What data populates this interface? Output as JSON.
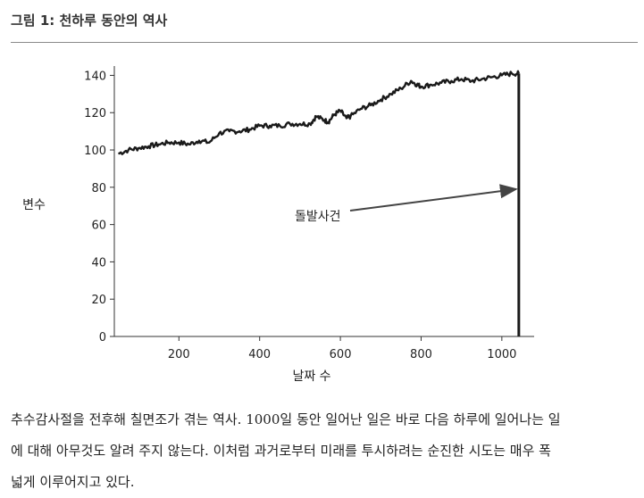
{
  "figure_title": "그림 1: 천하루 동안의 역사",
  "caption_lines": [
    "추수감사절을 전후해 칠면조가 겪는 역사. 1000일 동안 일어난 일은 바로 다음 하루에 일어나는 일",
    "에 대해 아무것도 알려 주지 않는다. 이처럼 과거로부터 미래를 투시하려는 순진한 시도는 매우 폭",
    "넓게 이루어지고 있다."
  ],
  "chart_data": {
    "type": "line",
    "xlabel": "날짜 수",
    "ylabel": "변수",
    "xlim": [
      40,
      1080
    ],
    "ylim": [
      0,
      145
    ],
    "x_ticks": [
      200,
      400,
      600,
      800,
      1000
    ],
    "y_ticks": [
      0,
      20,
      40,
      60,
      80,
      100,
      120,
      140
    ],
    "grid": false,
    "series": [
      {
        "color": "#1a1a1a",
        "points": [
          [
            50,
            98
          ],
          [
            75,
            100
          ],
          [
            100,
            101
          ],
          [
            125,
            102
          ],
          [
            150,
            103
          ],
          [
            175,
            104
          ],
          [
            200,
            104
          ],
          [
            225,
            103
          ],
          [
            250,
            105
          ],
          [
            275,
            104
          ],
          [
            300,
            109
          ],
          [
            325,
            110
          ],
          [
            350,
            110
          ],
          [
            375,
            111
          ],
          [
            400,
            113
          ],
          [
            425,
            113
          ],
          [
            450,
            113
          ],
          [
            475,
            114
          ],
          [
            500,
            114
          ],
          [
            525,
            114
          ],
          [
            540,
            118
          ],
          [
            560,
            116
          ],
          [
            570,
            115
          ],
          [
            585,
            119
          ],
          [
            600,
            121
          ],
          [
            615,
            117
          ],
          [
            625,
            118
          ],
          [
            650,
            122
          ],
          [
            675,
            124
          ],
          [
            700,
            127
          ],
          [
            725,
            130
          ],
          [
            750,
            133
          ],
          [
            775,
            137
          ],
          [
            790,
            135
          ],
          [
            800,
            134
          ],
          [
            825,
            135
          ],
          [
            850,
            136
          ],
          [
            875,
            137
          ],
          [
            900,
            138
          ],
          [
            925,
            137
          ],
          [
            950,
            138
          ],
          [
            975,
            139
          ],
          [
            1000,
            140
          ],
          [
            1025,
            141
          ],
          [
            1042,
            141
          ]
        ],
        "drop": {
          "x": 1042,
          "to_y": 0
        }
      }
    ],
    "annotations": [
      {
        "text": "돌발사건",
        "arrow_to": [
          1040,
          79
        ]
      }
    ]
  }
}
